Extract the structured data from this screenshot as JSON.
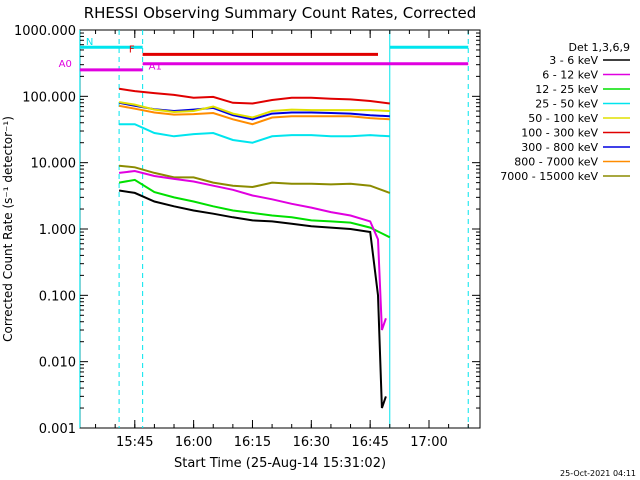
{
  "chart_data": {
    "type": "line",
    "title": "RHESSI Observing Summary Count Rates, Corrected",
    "xlabel": "Start Time (25-Aug-14 15:31:02)",
    "ylabel": "Corrected Count Rate (s⁻¹ detector⁻¹)",
    "y_scale": "log",
    "ylim": [
      0.001,
      1000
    ],
    "xlim": [
      "15:31:02",
      "17:13:00"
    ],
    "x_ticks": [
      "15:45",
      "16:00",
      "16:15",
      "16:30",
      "16:45",
      "17:00"
    ],
    "y_ticks": [
      "0.001",
      "0.010",
      "0.100",
      "1.000",
      "10.000",
      "100.000",
      "1000.000"
    ],
    "legend_title": "Det 1,3,6,9",
    "legend_position": "right",
    "footer_date": "25-Oct-2021 04:11",
    "flags": [
      {
        "label": "N",
        "color": "#00e5ee",
        "segments": [
          [
            "15:31",
            "15:47"
          ],
          [
            "16:50",
            "17:10"
          ]
        ],
        "value": 550
      },
      {
        "label": "F",
        "color": "#e00000",
        "segments": [
          [
            "15:47",
            "16:47"
          ]
        ],
        "value": 430
      },
      {
        "label": "A0",
        "color": "#e000e0",
        "segments": [
          [
            "15:31",
            "15:47"
          ]
        ],
        "value": 250
      },
      {
        "label": "A1",
        "color": "#e000e0",
        "segments": [
          [
            "15:47",
            "17:10"
          ]
        ],
        "value": 310
      }
    ],
    "vlines": [
      {
        "time": "15:31",
        "color": "#00e5ee",
        "style": "solid"
      },
      {
        "time": "15:41",
        "color": "#00e5ee",
        "style": "dashed"
      },
      {
        "time": "15:47",
        "color": "#00e5ee",
        "style": "dashed"
      },
      {
        "time": "16:50",
        "color": "#00e5ee",
        "style": "solid"
      },
      {
        "time": "17:10",
        "color": "#00e5ee",
        "style": "dashed"
      }
    ],
    "series": [
      {
        "name": "3 - 6 keV",
        "color": "#000000",
        "points": [
          [
            "15:41",
            3.8
          ],
          [
            "15:45",
            3.5
          ],
          [
            "15:50",
            2.6
          ],
          [
            "15:55",
            2.2
          ],
          [
            "16:00",
            1.9
          ],
          [
            "16:05",
            1.7
          ],
          [
            "16:10",
            1.5
          ],
          [
            "16:15",
            1.35
          ],
          [
            "16:20",
            1.3
          ],
          [
            "16:25",
            1.2
          ],
          [
            "16:30",
            1.1
          ],
          [
            "16:35",
            1.05
          ],
          [
            "16:40",
            1.0
          ],
          [
            "16:45",
            0.9
          ],
          [
            "16:47",
            0.1
          ],
          [
            "16:48",
            0.002
          ],
          [
            "16:49",
            0.003
          ]
        ]
      },
      {
        "name": "6 - 12 keV",
        "color": "#e000e0",
        "points": [
          [
            "15:41",
            7.0
          ],
          [
            "15:45",
            7.5
          ],
          [
            "15:50",
            6.3
          ],
          [
            "15:55",
            5.7
          ],
          [
            "16:00",
            5.2
          ],
          [
            "16:05",
            4.5
          ],
          [
            "16:10",
            3.9
          ],
          [
            "16:15",
            3.2
          ],
          [
            "16:20",
            2.8
          ],
          [
            "16:25",
            2.4
          ],
          [
            "16:30",
            2.1
          ],
          [
            "16:35",
            1.8
          ],
          [
            "16:40",
            1.6
          ],
          [
            "16:45",
            1.3
          ],
          [
            "16:47",
            0.7
          ],
          [
            "16:48",
            0.03
          ],
          [
            "16:49",
            0.045
          ]
        ]
      },
      {
        "name": "12 - 25 keV",
        "color": "#00e000",
        "points": [
          [
            "15:41",
            5.0
          ],
          [
            "15:45",
            5.5
          ],
          [
            "15:50",
            3.6
          ],
          [
            "15:55",
            3.0
          ],
          [
            "16:00",
            2.6
          ],
          [
            "16:05",
            2.2
          ],
          [
            "16:10",
            1.9
          ],
          [
            "16:15",
            1.75
          ],
          [
            "16:20",
            1.6
          ],
          [
            "16:25",
            1.5
          ],
          [
            "16:30",
            1.35
          ],
          [
            "16:35",
            1.3
          ],
          [
            "16:40",
            1.25
          ],
          [
            "16:45",
            1.05
          ],
          [
            "16:50",
            0.75
          ]
        ]
      },
      {
        "name": "25 - 50 keV",
        "color": "#00e5ee",
        "points": [
          [
            "15:41",
            38
          ],
          [
            "15:45",
            38
          ],
          [
            "15:50",
            28
          ],
          [
            "15:55",
            25
          ],
          [
            "16:00",
            27
          ],
          [
            "16:05",
            28
          ],
          [
            "16:10",
            22
          ],
          [
            "16:15",
            20
          ],
          [
            "16:20",
            25
          ],
          [
            "16:25",
            26
          ],
          [
            "16:30",
            26
          ],
          [
            "16:35",
            25
          ],
          [
            "16:40",
            25
          ],
          [
            "16:45",
            26
          ],
          [
            "16:50",
            25
          ]
        ]
      },
      {
        "name": "50 - 100 keV",
        "color": "#e0e000",
        "points": [
          [
            "15:41",
            82
          ],
          [
            "15:45",
            75
          ],
          [
            "15:50",
            63
          ],
          [
            "15:55",
            58
          ],
          [
            "16:00",
            60
          ],
          [
            "16:05",
            70
          ],
          [
            "16:10",
            55
          ],
          [
            "16:15",
            48
          ],
          [
            "16:20",
            60
          ],
          [
            "16:25",
            63
          ],
          [
            "16:30",
            62
          ],
          [
            "16:35",
            62
          ],
          [
            "16:40",
            62
          ],
          [
            "16:45",
            62
          ],
          [
            "16:50",
            60
          ]
        ]
      },
      {
        "name": "100 - 300 keV",
        "color": "#e00000",
        "points": [
          [
            "15:41",
            130
          ],
          [
            "15:45",
            120
          ],
          [
            "15:50",
            112
          ],
          [
            "15:55",
            105
          ],
          [
            "16:00",
            95
          ],
          [
            "16:05",
            98
          ],
          [
            "16:10",
            80
          ],
          [
            "16:15",
            78
          ],
          [
            "16:20",
            88
          ],
          [
            "16:25",
            95
          ],
          [
            "16:30",
            95
          ],
          [
            "16:35",
            92
          ],
          [
            "16:40",
            90
          ],
          [
            "16:45",
            85
          ],
          [
            "16:50",
            78
          ]
        ]
      },
      {
        "name": "300 - 800 keV",
        "color": "#0000e0",
        "points": [
          [
            "15:41",
            80
          ],
          [
            "15:45",
            72
          ],
          [
            "15:50",
            64
          ],
          [
            "15:55",
            60
          ],
          [
            "16:00",
            63
          ],
          [
            "16:05",
            67
          ],
          [
            "16:10",
            52
          ],
          [
            "16:15",
            45
          ],
          [
            "16:20",
            55
          ],
          [
            "16:25",
            57
          ],
          [
            "16:30",
            57
          ],
          [
            "16:35",
            56
          ],
          [
            "16:40",
            55
          ],
          [
            "16:45",
            52
          ],
          [
            "16:50",
            50
          ]
        ]
      },
      {
        "name": "800 - 7000 keV",
        "color": "#ff8c00",
        "points": [
          [
            "15:41",
            72
          ],
          [
            "15:45",
            65
          ],
          [
            "15:50",
            57
          ],
          [
            "15:55",
            53
          ],
          [
            "16:00",
            54
          ],
          [
            "16:05",
            56
          ],
          [
            "16:10",
            45
          ],
          [
            "16:15",
            38
          ],
          [
            "16:20",
            48
          ],
          [
            "16:25",
            50
          ],
          [
            "16:30",
            50
          ],
          [
            "16:35",
            50
          ],
          [
            "16:40",
            50
          ],
          [
            "16:45",
            47
          ],
          [
            "16:50",
            45
          ]
        ]
      },
      {
        "name": "7000 - 15000 keV",
        "color": "#8b8b00",
        "points": [
          [
            "15:41",
            9
          ],
          [
            "15:45",
            8.5
          ],
          [
            "15:50",
            7
          ],
          [
            "15:55",
            6
          ],
          [
            "16:00",
            6
          ],
          [
            "16:05",
            5
          ],
          [
            "16:10",
            4.5
          ],
          [
            "16:15",
            4.3
          ],
          [
            "16:20",
            5
          ],
          [
            "16:25",
            4.8
          ],
          [
            "16:30",
            4.8
          ],
          [
            "16:35",
            4.7
          ],
          [
            "16:40",
            4.8
          ],
          [
            "16:45",
            4.5
          ],
          [
            "16:50",
            3.5
          ]
        ]
      }
    ]
  }
}
